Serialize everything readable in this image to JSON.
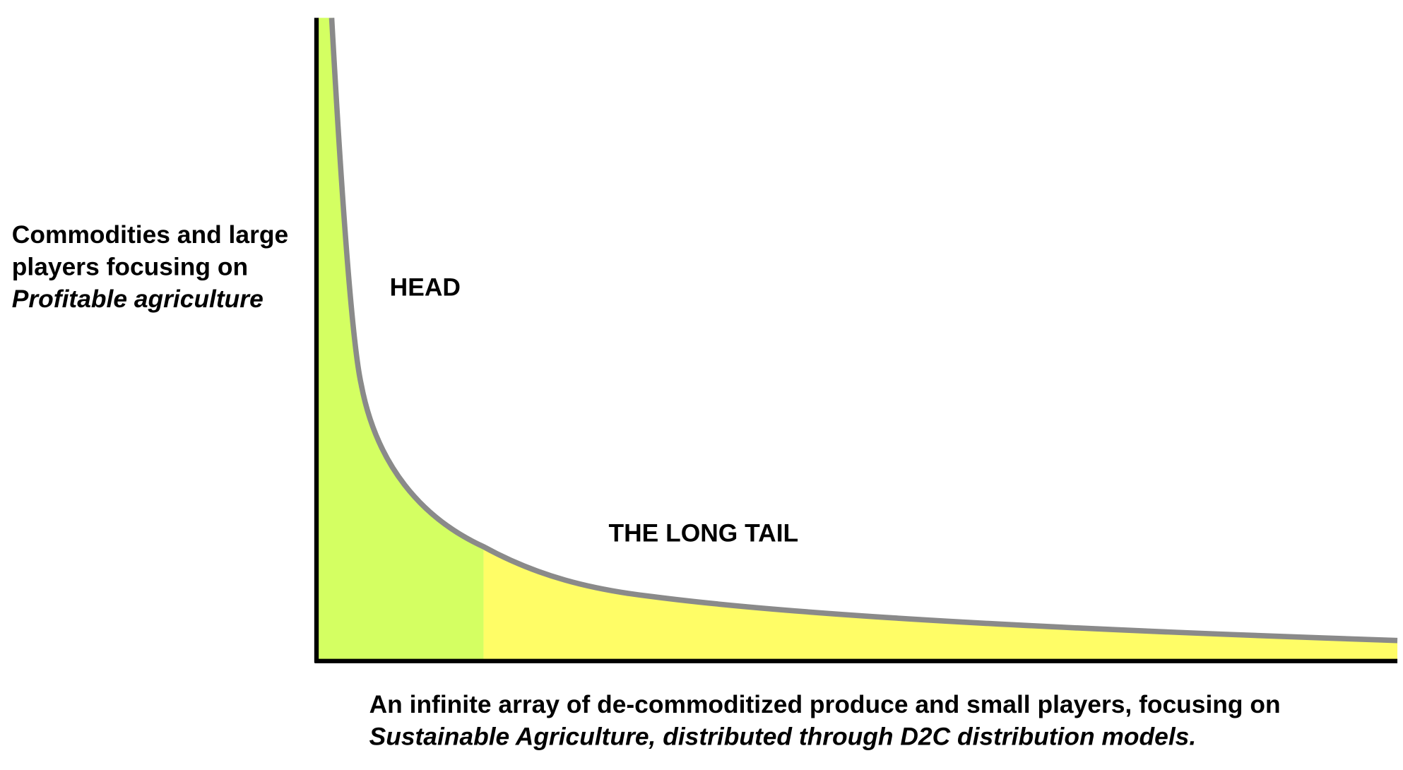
{
  "y_label": {
    "lines": [
      "Commodities and large",
      "players focusing on"
    ],
    "emphasis": "Profitable agriculture"
  },
  "head_label": "HEAD",
  "tail_label": "THE LONG TAIL",
  "x_label": {
    "line": "An infinite array of de-commoditized produce and small players, focusing on",
    "emphasis": "Sustainable Agriculture, distributed through D2C distribution models."
  }
}
